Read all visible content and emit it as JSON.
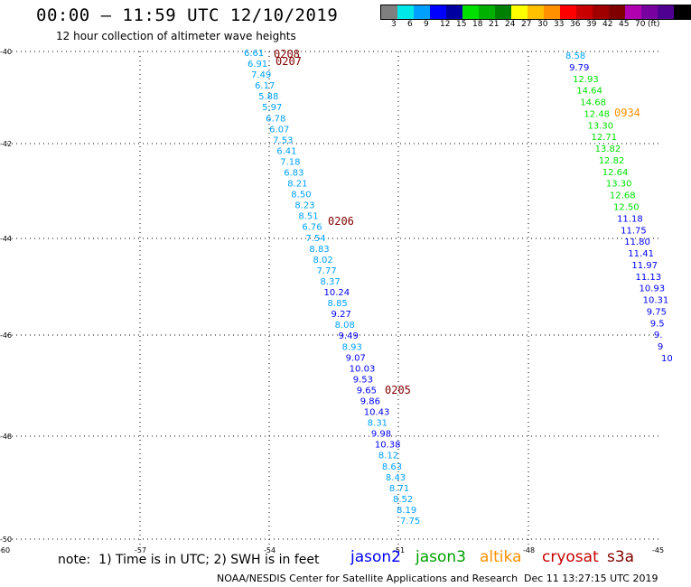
{
  "title": "00:00 – 11:59 UTC 12/10/2019",
  "subtitle": "12 hour collection of altimeter wave heights",
  "colorbar": {
    "colors": [
      "#7f7f7f",
      "#00e8e8",
      "#00a0ff",
      "#0000ff",
      "#0000a0",
      "#00e000",
      "#00b000",
      "#008000",
      "#ffff00",
      "#ffc000",
      "#ff9000",
      "#ff0000",
      "#c80000",
      "#a00000",
      "#800000",
      "#b000b0",
      "#7800a0",
      "#500090",
      "#000000"
    ],
    "labels": [
      "3",
      "6",
      "9",
      "12",
      "15",
      "18",
      "21",
      "24",
      "27",
      "30",
      "33",
      "36",
      "39",
      "42",
      "45",
      "70",
      "(ft)"
    ]
  },
  "map": {
    "lat_labels": [
      "-40",
      "-42",
      "-44",
      "-46",
      "-48",
      "-50"
    ],
    "lon_labels": [
      "-60",
      "-57",
      "-54",
      "-51",
      "-48",
      "-45"
    ]
  },
  "track_times": {
    "t0208": "0208",
    "t0207": "0207",
    "t0206": "0206",
    "t0205": "0205",
    "t0934": "0934"
  },
  "track_a_values": [
    "6.61",
    "6.91",
    "7.49",
    "6.17",
    "5.88",
    "5.97",
    "6.78",
    "6.07",
    "7.53",
    "6.41",
    "7.18",
    "6.83",
    "8.21",
    "8.50",
    "8.23",
    "8.51",
    "6.76",
    "7.54",
    "8.83",
    "8.02",
    "7.77",
    "8.37",
    "10.24",
    "8.85",
    "9.27",
    "8.08",
    "9.49",
    "8.93",
    "9.07",
    "10.03",
    "9.53",
    "9.65",
    "9.86",
    "10.43",
    "8.31",
    "9.98",
    "10.38",
    "8.12",
    "8.63",
    "8.43",
    "8.71",
    "8.52",
    "8.19",
    "7.75"
  ],
  "track_b_values": [
    "8.58",
    "9.79",
    "12.93",
    "14.64",
    "14.68",
    "12.48",
    "13.30",
    "12.71",
    "13.82",
    "12.82",
    "12.64",
    "13.30",
    "12.68",
    "12.50",
    "11.18",
    "11.75",
    "11.80",
    "11.41",
    "11.97",
    "11.13",
    "10.93",
    "10.31",
    "9.75",
    "9.5",
    "9.",
    "9",
    "10"
  ],
  "note": "note:  1) Time is in UTC; 2) SWH is in feet",
  "legend": [
    {
      "name": "jason2",
      "color": "#0000ff"
    },
    {
      "name": "jason3",
      "color": "#00a000"
    },
    {
      "name": "altika",
      "color": "#ff9000"
    },
    {
      "name": "cryosat",
      "color": "#c80000"
    },
    {
      "name": "s3a",
      "color": "#800000"
    }
  ],
  "footer_left": "NOAA/NESDIS Center for Satellite Applications and Research",
  "footer_right": "Dec 11 13:27:15 UTC 2019"
}
